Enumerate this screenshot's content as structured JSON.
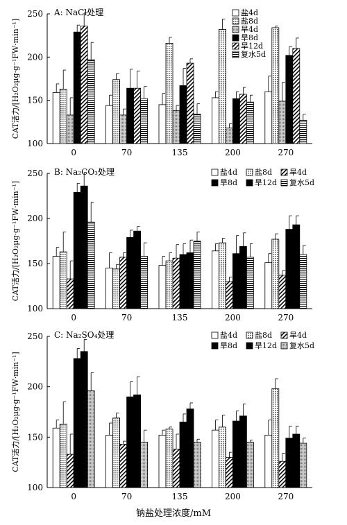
{
  "figure": {
    "xlabel": "钠盐处理浓度/mM"
  },
  "chart_data": [
    {
      "type": "bar",
      "title": "A: NaCl处理",
      "ylabel": "CAT活力/[H₂O₂μg·g⁻¹FW·min⁻¹]",
      "ylim": [
        100,
        250
      ],
      "yticks": [
        100,
        150,
        200,
        250
      ],
      "categories": [
        "0",
        "70",
        "135",
        "200",
        "270"
      ],
      "series": [
        {
          "name": "盐4d",
          "pattern": "white",
          "values": [
            159,
            144,
            145,
            153,
            160
          ],
          "errors": [
            10,
            12,
            13,
            7,
            18
          ]
        },
        {
          "name": "盐8d",
          "pattern": "dots",
          "values": [
            163,
            174,
            216,
            232,
            234
          ],
          "errors": [
            22,
            7,
            7,
            12,
            2
          ]
        },
        {
          "name": "旱4d",
          "pattern": "gray",
          "values": [
            133,
            133,
            138,
            118,
            149
          ],
          "errors": [
            20,
            7,
            6,
            5,
            22
          ]
        },
        {
          "name": "旱8d",
          "pattern": "black",
          "values": [
            229,
            164,
            167,
            152,
            202
          ],
          "errors": [
            8,
            22,
            20,
            8,
            10
          ]
        },
        {
          "name": "旱12d",
          "pattern": "diag",
          "values": [
            236,
            164,
            193,
            157,
            210
          ],
          "errors": [
            15,
            20,
            5,
            8,
            12
          ]
        },
        {
          "name": "复水5d",
          "pattern": "hlines",
          "values": [
            197,
            152,
            134,
            148,
            127
          ],
          "errors": [
            20,
            14,
            12,
            8,
            7
          ]
        }
      ]
    },
    {
      "type": "bar",
      "title": "B: Na₂CO₃处理",
      "ylabel": "CAT活力/[H₂O₂μg·g⁻¹FW·min⁻¹]",
      "ylim": [
        100,
        250
      ],
      "yticks": [
        100,
        150,
        200,
        250
      ],
      "categories": [
        "0",
        "70",
        "135",
        "200",
        "270"
      ],
      "series": [
        {
          "name": "盐4d",
          "pattern": "white",
          "values": [
            158,
            145,
            148,
            164,
            151
          ],
          "errors": [
            10,
            17,
            10,
            8,
            10
          ]
        },
        {
          "name": "盐8d",
          "pattern": "dots",
          "values": [
            163,
            144,
            153,
            173,
            177
          ],
          "errors": [
            22,
            5,
            9,
            5,
            6
          ]
        },
        {
          "name": "旱4d",
          "pattern": "diag",
          "values": [
            133,
            157,
            156,
            130,
            137
          ],
          "errors": [
            20,
            5,
            15,
            5,
            5
          ]
        },
        {
          "name": "旱8d",
          "pattern": "black",
          "values": [
            229,
            179,
            160,
            161,
            188
          ],
          "errors": [
            10,
            8,
            12,
            20,
            15
          ]
        },
        {
          "name": "旱12d",
          "pattern": "black",
          "values": [
            236,
            186,
            162,
            169,
            193
          ],
          "errors": [
            15,
            5,
            14,
            15,
            10
          ]
        },
        {
          "name": "复水5d",
          "pattern": "hlines",
          "values": [
            196,
            158,
            175,
            157,
            160
          ],
          "errors": [
            22,
            15,
            10,
            15,
            10
          ]
        }
      ]
    },
    {
      "type": "bar",
      "title": "C: Na₂SO₄处理",
      "ylabel": "CAT活力/[H₂O₂μg·g⁻¹FW·min⁻¹]",
      "ylim": [
        100,
        250
      ],
      "yticks": [
        100,
        150,
        200,
        250
      ],
      "categories": [
        "0",
        "70",
        "135",
        "200",
        "270"
      ],
      "series": [
        {
          "name": "盐4d",
          "pattern": "white",
          "values": [
            159,
            152,
            152,
            157,
            152
          ],
          "errors": [
            8,
            12,
            5,
            10,
            15
          ]
        },
        {
          "name": "盐8d",
          "pattern": "dots",
          "values": [
            163,
            169,
            158,
            160,
            198
          ],
          "errors": [
            22,
            5,
            2,
            12,
            10
          ]
        },
        {
          "name": "旱4d",
          "pattern": "diag",
          "values": [
            133,
            143,
            138,
            130,
            126
          ],
          "errors": [
            20,
            3,
            15,
            5,
            8
          ]
        },
        {
          "name": "旱8d",
          "pattern": "black",
          "values": [
            228,
            190,
            165,
            166,
            149
          ],
          "errors": [
            10,
            15,
            8,
            10,
            12
          ]
        },
        {
          "name": "旱12d",
          "pattern": "black",
          "values": [
            235,
            192,
            178,
            171,
            153
          ],
          "errors": [
            12,
            18,
            6,
            12,
            8
          ]
        },
        {
          "name": "复水5d",
          "pattern": "gray",
          "values": [
            196,
            145,
            145,
            145,
            144
          ],
          "errors": [
            18,
            12,
            3,
            2,
            5
          ]
        }
      ]
    }
  ]
}
